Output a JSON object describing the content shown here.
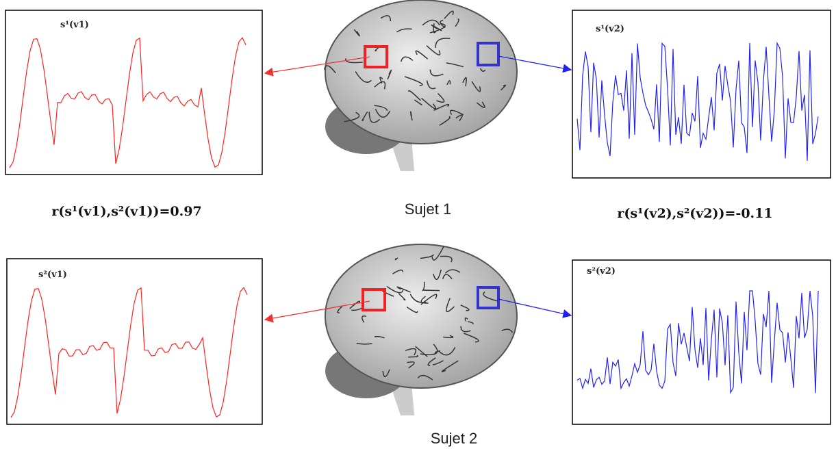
{
  "panels": [
    {
      "label": "s¹(v1)"
    },
    {
      "label": "s¹(v2)"
    },
    {
      "label": "s²(v1)"
    },
    {
      "label": "s²(v2)"
    }
  ],
  "correlations": [
    {
      "text": "r(s¹(v1),s²(v1))=0.97"
    },
    {
      "text": "r(s¹(v2),s²(v2))=-0.11"
    }
  ],
  "subjects": [
    {
      "label": "Sujet 1"
    },
    {
      "label": "Sujet 2"
    }
  ]
}
